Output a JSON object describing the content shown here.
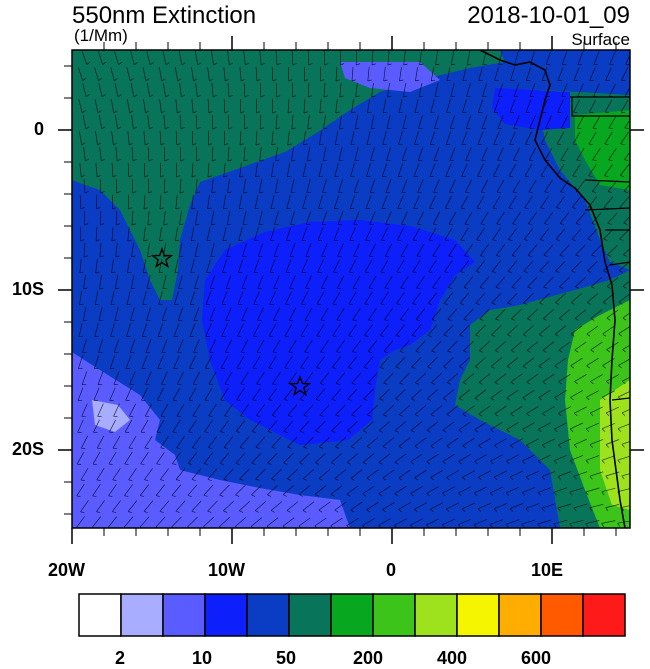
{
  "header": {
    "title": "550nm Extinction",
    "units": "(1/Mm)",
    "valid_time": "2018-10-01_09",
    "level": "Surface"
  },
  "axes": {
    "lat_labels": [
      "0",
      "10S",
      "20S"
    ],
    "lon_labels": [
      "20W",
      "10W",
      "0",
      "10E"
    ]
  },
  "colorbar": {
    "labels": [
      "2",
      "10",
      "50",
      "200",
      "400",
      "600"
    ],
    "colors": [
      "#ffffff",
      "#a8adff",
      "#5a5cff",
      "#0d1ffa",
      "#0b3cc4",
      "#08755a",
      "#07a820",
      "#3cc41a",
      "#9ee21d",
      "#f5f500",
      "#ffad00",
      "#ff5a00",
      "#ff1a1a"
    ]
  },
  "map": {
    "ocean_color": "#0b3cc4",
    "markers": [
      "star",
      "star"
    ]
  }
}
